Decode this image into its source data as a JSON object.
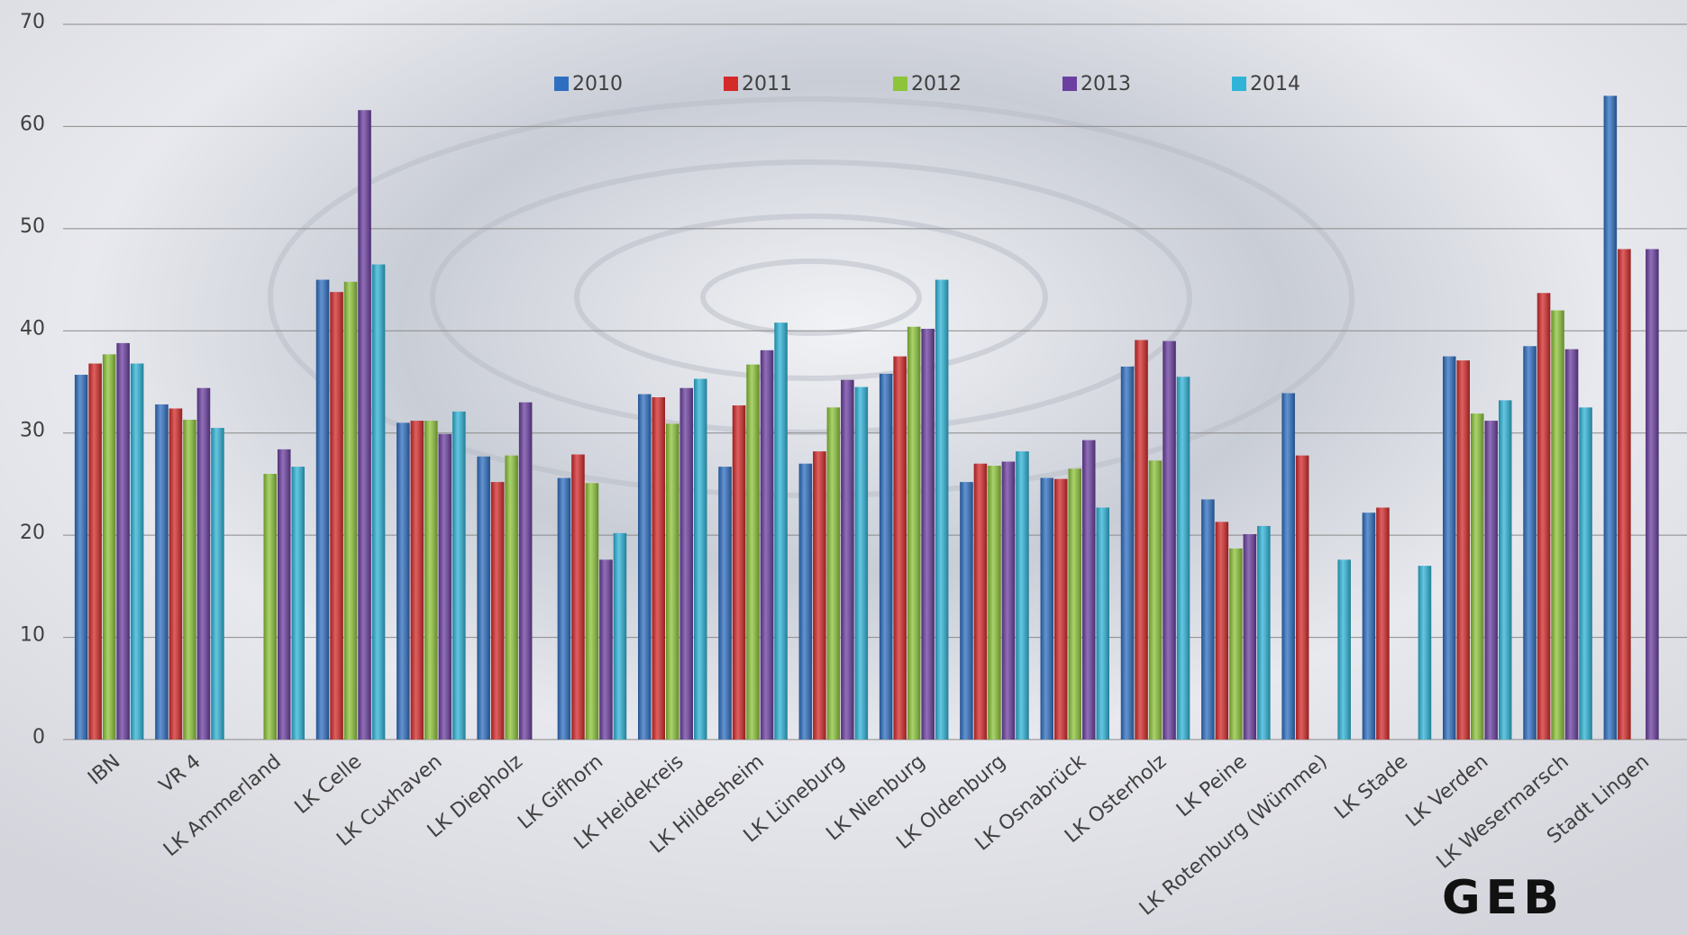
{
  "chart_data": {
    "type": "bar",
    "categories": [
      "IBN",
      "VR 4",
      "LK Ammerland",
      "LK Celle",
      "LK Cuxhaven",
      "LK Diepholz",
      "LK Gifhorn",
      "LK Heidekreis",
      "LK Hildesheim",
      "LK Lüneburg",
      "LK Nienburg",
      "LK Oldenburg",
      "LK Osnabrück",
      "LK Osterholz",
      "LK Peine",
      "LK Rotenburg (Wümme)",
      "LK Stade",
      "LK Verden",
      "LK Wesermarsch",
      "Stadt Lingen"
    ],
    "series": [
      {
        "name": "2010",
        "color": "#2e6fc1",
        "values": [
          35.7,
          32.8,
          null,
          45.0,
          31.0,
          27.7,
          25.6,
          33.8,
          26.7,
          27.0,
          35.8,
          25.2,
          25.6,
          36.5,
          23.5,
          33.9,
          22.2,
          37.5,
          38.5,
          63.0
        ]
      },
      {
        "name": "2011",
        "color": "#d42a2a",
        "values": [
          36.8,
          32.4,
          null,
          43.8,
          31.2,
          25.2,
          27.9,
          33.5,
          32.7,
          28.2,
          37.5,
          27.0,
          25.5,
          39.1,
          21.3,
          27.8,
          22.7,
          37.1,
          43.7,
          48.0
        ]
      },
      {
        "name": "2012",
        "color": "#8dc43a",
        "values": [
          37.7,
          31.3,
          26.0,
          44.8,
          31.2,
          27.8,
          25.1,
          30.9,
          36.7,
          32.5,
          40.4,
          26.8,
          26.5,
          27.3,
          18.7,
          null,
          null,
          31.9,
          42.0,
          null
        ]
      },
      {
        "name": "2013",
        "color": "#6b3fa0",
        "values": [
          38.8,
          34.4,
          28.4,
          61.6,
          29.9,
          33.0,
          17.6,
          34.4,
          38.1,
          35.2,
          40.2,
          27.2,
          29.3,
          39.0,
          20.1,
          null,
          null,
          31.2,
          38.2,
          48.0
        ]
      },
      {
        "name": "2014",
        "color": "#2fb4d8",
        "values": [
          36.8,
          30.5,
          26.7,
          46.5,
          32.1,
          null,
          20.2,
          35.3,
          40.8,
          34.5,
          45.0,
          28.2,
          22.7,
          35.5,
          20.9,
          17.6,
          17.0,
          33.2,
          32.5,
          null
        ]
      }
    ],
    "ylim": [
      0,
      70
    ],
    "yticks": [
      0,
      10,
      20,
      30,
      40,
      50,
      60,
      70
    ],
    "grid": true,
    "legend": "top",
    "logo": "GEB"
  }
}
